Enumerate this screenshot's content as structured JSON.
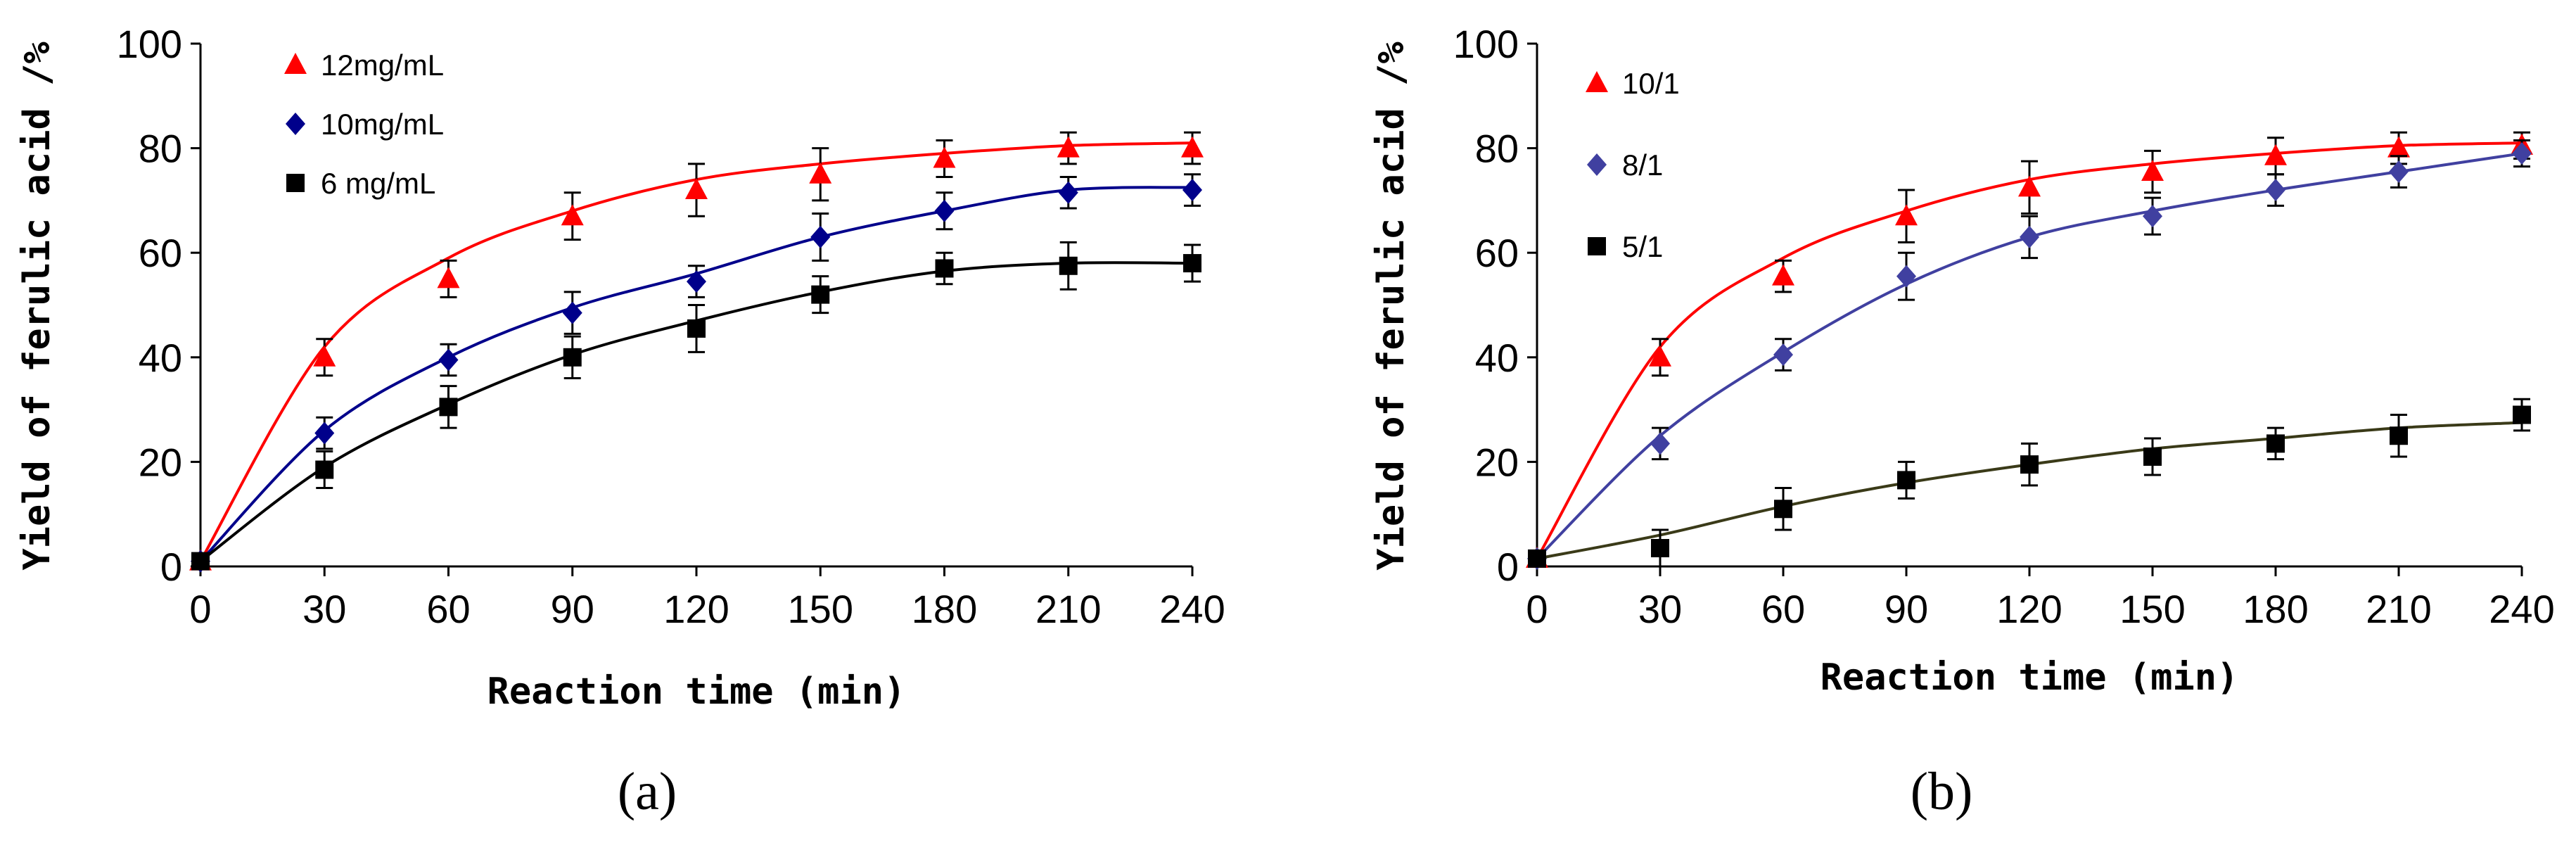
{
  "chart_data": [
    {
      "type": "line",
      "panel_label": "(a)",
      "xlabel": "Reaction time (min)",
      "ylabel": "Yield of ferulic acid /%",
      "xlim": [
        0,
        240
      ],
      "ylim": [
        0,
        100
      ],
      "x_ticks": [
        0,
        30,
        60,
        90,
        120,
        150,
        180,
        210,
        240
      ],
      "y_ticks": [
        0,
        20,
        40,
        60,
        80,
        100
      ],
      "x_tick_labels": [
        "0",
        "30",
        "60",
        "90",
        "120",
        "150",
        "180",
        "210",
        "240"
      ],
      "y_tick_labels": [
        "0",
        "20",
        "40",
        "60",
        "80",
        "100"
      ],
      "legend_position": "top-left",
      "x": [
        0,
        30,
        60,
        90,
        120,
        150,
        180,
        210,
        240
      ],
      "series": [
        {
          "name": "12mg/mL",
          "color": "#ff0000",
          "marker": "triangle",
          "values": [
            1,
            40,
            55,
            67,
            72,
            75,
            78,
            80,
            80
          ],
          "errors": [
            1,
            3.5,
            3.5,
            4.5,
            5,
            5,
            3.5,
            3,
            3
          ],
          "fit": [
            1,
            42,
            59,
            68,
            74,
            77,
            79,
            80.5,
            81
          ]
        },
        {
          "name": "10mg/mL",
          "color": "#00008b",
          "marker": "diamond",
          "values": [
            1,
            25.5,
            39.5,
            48.5,
            54.5,
            63,
            68,
            71.5,
            72
          ],
          "errors": [
            1,
            3,
            3,
            4,
            3,
            4.5,
            3.5,
            3,
            3
          ],
          "fit": [
            1,
            26,
            40,
            49.5,
            56,
            63,
            68,
            72,
            72.5
          ]
        },
        {
          "name": "6 mg/mL",
          "color": "#000000",
          "marker": "square",
          "values": [
            1,
            18.5,
            30.5,
            40,
            45.5,
            52,
            57,
            57.5,
            58
          ],
          "errors": [
            1,
            3.5,
            4,
            4,
            4.5,
            3.5,
            3,
            4.5,
            3.5
          ],
          "fit": [
            1,
            19,
            31,
            40.5,
            47,
            52.5,
            56.5,
            58,
            58
          ]
        }
      ]
    },
    {
      "type": "line",
      "panel_label": "(b)",
      "xlabel": "Reaction time (min)",
      "ylabel": "Yield of ferulic acid /%",
      "xlim": [
        0,
        240
      ],
      "ylim": [
        0,
        100
      ],
      "x_ticks": [
        0,
        30,
        60,
        90,
        120,
        150,
        180,
        210,
        240
      ],
      "y_ticks": [
        0,
        20,
        40,
        60,
        80,
        100
      ],
      "x_tick_labels": [
        "0",
        "30",
        "60",
        "90",
        "120",
        "150",
        "180",
        "210",
        "240"
      ],
      "y_tick_labels": [
        "0",
        "20",
        "40",
        "60",
        "80",
        "100"
      ],
      "legend_position": "top-left",
      "x": [
        0,
        30,
        60,
        90,
        120,
        150,
        180,
        210,
        240
      ],
      "series": [
        {
          "name": "10/1",
          "color": "#ff0000",
          "marker": "triangle",
          "values": [
            1.5,
            40,
            55.5,
            67,
            72.5,
            75.5,
            78.5,
            80,
            80.5
          ],
          "errors": [
            1,
            3.5,
            3,
            5,
            5,
            4,
            3.5,
            3,
            2.5
          ],
          "fit": [
            1.5,
            42,
            59,
            68,
            74,
            77,
            79,
            80.5,
            81
          ]
        },
        {
          "name": "8/1",
          "color": "#4040a0",
          "marker": "diamond",
          "values": [
            1.5,
            23.5,
            40.5,
            55.5,
            63,
            67,
            72,
            75.5,
            79
          ],
          "errors": [
            1,
            3,
            3,
            4.5,
            4,
            3.5,
            3,
            3,
            2.5
          ],
          "fit": [
            1.5,
            25,
            41,
            54,
            63,
            68,
            72,
            75.5,
            79
          ]
        },
        {
          "name": "5/1",
          "color": "#000000",
          "line_color": "#3a3a18",
          "marker": "square",
          "values": [
            1.5,
            3.5,
            11,
            16.5,
            19.5,
            21,
            23.5,
            25,
            29
          ],
          "errors": [
            1,
            3.5,
            4,
            3.5,
            4,
            3.5,
            3,
            4,
            3
          ],
          "fit": [
            1.5,
            6,
            11.5,
            16,
            19.5,
            22.5,
            24.5,
            26.5,
            27.5
          ]
        }
      ]
    }
  ]
}
